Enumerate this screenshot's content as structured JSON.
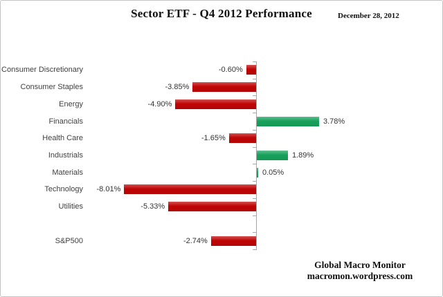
{
  "header": {
    "title": "Sector ETF - Q4 2012 Performance",
    "date": "December 28, 2012"
  },
  "footer": {
    "line1": "Global Macro Monitor",
    "line2": "macromon.wordpress.com"
  },
  "chart_data": {
    "type": "bar",
    "orientation": "horizontal",
    "title": "Sector ETF - Q4 2012 Performance",
    "categories": [
      "Consumer Discretionary",
      "Consumer Staples",
      "Energy",
      "Financials",
      "Health Care",
      "Industrials",
      "Materials",
      "Technology",
      "Utilities",
      "",
      "S&P500"
    ],
    "values": [
      -0.6,
      -3.85,
      -4.9,
      3.78,
      -1.65,
      1.89,
      0.05,
      -8.01,
      -5.33,
      null,
      -2.74
    ],
    "value_labels": [
      "-0.60%",
      "-3.85%",
      "-4.90%",
      "3.78%",
      "-1.65%",
      "1.89%",
      "0.05%",
      "-8.01%",
      "-5.33%",
      "",
      "-2.74%"
    ],
    "xlabel": "",
    "ylabel": "",
    "xlim": [
      -10,
      11.4
    ],
    "grid": false,
    "legend": false,
    "value_labels_position": "outside-end",
    "colors": {
      "negative_bar": "#c00505",
      "positive_bar": "#17a25c",
      "axis": "#a6a6a6",
      "category_text": "#3f3f3f",
      "value_text": "#333333"
    }
  }
}
